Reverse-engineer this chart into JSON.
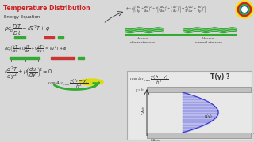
{
  "title": "Temperature Distribution",
  "title_color": "#cc2222",
  "bg_color": "#d8d8d8",
  "text_color": "#333333",
  "green_color": "#33aa33",
  "red_color": "#cc3333",
  "blue_color": "#3333cc",
  "yellow_color": "#dddd00",
  "plate_color": "#bbbbbb",
  "profile_fill": "#aaaaee",
  "viscous_shear": "Viscous\nshear stresses",
  "viscous_normal": "Viscous\nnormal stresses"
}
